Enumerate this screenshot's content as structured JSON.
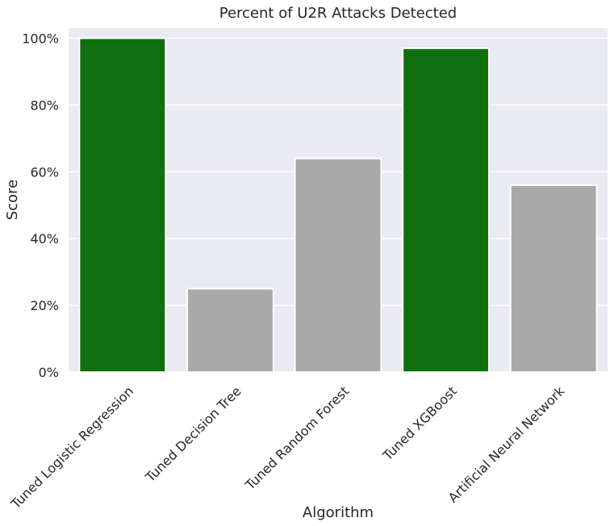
{
  "chart_data": {
    "type": "bar",
    "title": "Percent of U2R Attacks Detected",
    "xlabel": "Algorithm",
    "ylabel": "Score",
    "categories": [
      "Tuned Logistic Regression",
      "Tuned Decision Tree",
      "Tuned Random Forest",
      "Tuned XGBoost",
      "Artificial Neural Network"
    ],
    "values": [
      1.0,
      0.25,
      0.64,
      0.97,
      0.56
    ],
    "bar_colors": [
      "#107010",
      "#a9a9a9",
      "#a9a9a9",
      "#107010",
      "#a9a9a9"
    ],
    "ylim": [
      0,
      1.03
    ],
    "yticks": [
      0,
      0.2,
      0.4,
      0.6,
      0.8,
      1.0
    ],
    "ytick_labels": [
      "0%",
      "20%",
      "40%",
      "60%",
      "80%",
      "100%"
    ],
    "grid": true,
    "background_color": "#eaeaf2"
  }
}
